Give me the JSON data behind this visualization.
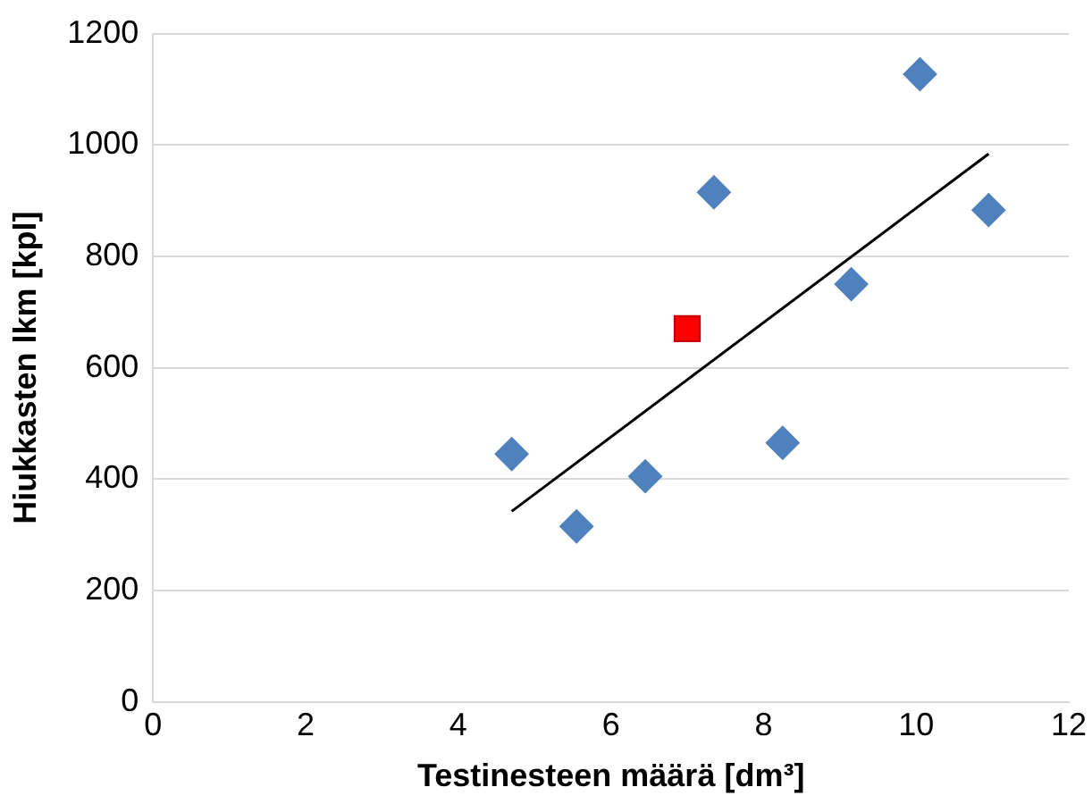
{
  "chart_data": {
    "type": "scatter",
    "xlabel": "Testinesteen määrä [dm³]",
    "ylabel": "Hiukkasten lkm [kpl]",
    "xlim": [
      0,
      12
    ],
    "xticks": [
      0,
      2,
      4,
      6,
      8,
      10,
      12
    ],
    "ylim": [
      0,
      1200
    ],
    "yticks": [
      0,
      200,
      400,
      600,
      800,
      1000,
      1200
    ],
    "grid": "y",
    "legend": false,
    "series": [
      {
        "color": "#4f81bd",
        "marker": "diamond",
        "x": [
          4.7,
          5.55,
          6.45,
          7.35,
          8.25,
          9.15,
          10.05,
          10.95
        ],
        "values": [
          445,
          315,
          405,
          915,
          465,
          750,
          1127,
          883
        ]
      },
      {
        "color": "#ff0000",
        "marker": "square",
        "x": [
          7.0
        ],
        "values": [
          670
        ]
      },
      {
        "type": "line",
        "color": "#000000",
        "marker": "none",
        "x": [
          4.7,
          10.95
        ],
        "values": [
          342,
          984
        ]
      }
    ]
  }
}
